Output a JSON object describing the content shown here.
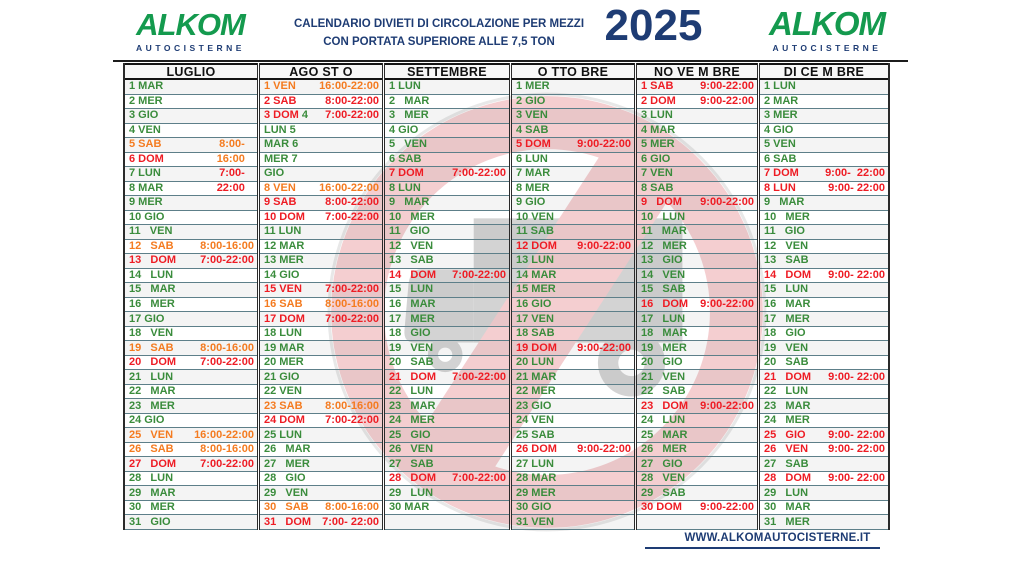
{
  "header": {
    "brand": "ALKOM",
    "brand_sub": "AUTOCISTERNE",
    "title_line1": "CALENDARIO DIVIETI DI CIRCOLAZIONE PER MEZZI",
    "title_line2": "CON PORTATA SUPERIORE ALLE 7,5 TON",
    "year": "2025"
  },
  "footer": {
    "website": "WWW.ALKOMAUTOCISTERNE.IT"
  },
  "colors": {
    "brand_green": "#149a4e",
    "navy": "#1e3c74",
    "day_green": "#3a8c3c",
    "partial_ban_orange": "#f47b20",
    "full_ban_red": "#ee1c24"
  },
  "watermark": {
    "icon": "no-entry-truck-sign"
  },
  "months": [
    {
      "name": "LUGLIO",
      "days": [
        {
          "d": "1 MAR",
          "dc": "g"
        },
        {
          "d": "2 MER",
          "dc": "g"
        },
        {
          "d": "3 GIO",
          "dc": "g"
        },
        {
          "d": "4 VEN",
          "dc": "g"
        },
        {
          "d": "5 SAB",
          "dc": "o",
          "t": "8:00-   ",
          "tc": "o"
        },
        {
          "d": "6 DOM",
          "dc": "r",
          "t": "16:00   ",
          "tc": "o"
        },
        {
          "d": "7 LUN",
          "dc": "g",
          "t": "7:00-   ",
          "tc": "r"
        },
        {
          "d": "8 MAR",
          "dc": "g",
          "t": "22:00   ",
          "tc": "r"
        },
        {
          "d": "9 MER",
          "dc": "g"
        },
        {
          "d": "10 GIO",
          "dc": "g"
        },
        {
          "d": "11   VEN",
          "dc": "g"
        },
        {
          "d": "12   SAB",
          "dc": "o",
          "t": "8:00-16:00",
          "tc": "o"
        },
        {
          "d": "13   DOM",
          "dc": "r",
          "t": "7:00-22:00",
          "tc": "r"
        },
        {
          "d": "14   LUN",
          "dc": "g"
        },
        {
          "d": "15   MAR",
          "dc": "g"
        },
        {
          "d": "16   MER",
          "dc": "g"
        },
        {
          "d": "17 GIO",
          "dc": "g"
        },
        {
          "d": "18   VEN",
          "dc": "g"
        },
        {
          "d": "19   SAB",
          "dc": "o",
          "t": "8:00-16:00",
          "tc": "o"
        },
        {
          "d": "20   DOM",
          "dc": "r",
          "t": "7:00-22:00",
          "tc": "r"
        },
        {
          "d": "21   LUN",
          "dc": "g"
        },
        {
          "d": "22   MAR",
          "dc": "g"
        },
        {
          "d": "23   MER",
          "dc": "g"
        },
        {
          "d": "24 GIO",
          "dc": "g"
        },
        {
          "d": "25   VEN",
          "dc": "o",
          "t": "16:00-22:00",
          "tc": "o"
        },
        {
          "d": "26   SAB",
          "dc": "o",
          "t": "8:00-16:00",
          "tc": "o"
        },
        {
          "d": "27   DOM",
          "dc": "r",
          "t": "7:00-22:00",
          "tc": "r"
        },
        {
          "d": "28   LUN",
          "dc": "g"
        },
        {
          "d": "29   MAR",
          "dc": "g"
        },
        {
          "d": "30   MER",
          "dc": "g"
        },
        {
          "d": "31   GIO",
          "dc": "g"
        }
      ]
    },
    {
      "name": "AGO ST O",
      "days": [
        {
          "d": "1 VEN",
          "dc": "o",
          "t": "16:00-22:00",
          "tc": "o"
        },
        {
          "d": "2 SAB",
          "dc": "r",
          "t": "8:00-22:00",
          "tc": "r"
        },
        {
          "d": "3 DOM",
          "dc": "r",
          "d2": " 4",
          "d2c": "g",
          "t": "7:00-22:00",
          "tc": "r"
        },
        {
          "d": "LUN 5",
          "dc": "g"
        },
        {
          "d": "MAR 6",
          "dc": "g"
        },
        {
          "d": "MER 7",
          "dc": "g"
        },
        {
          "d": "GIO",
          "dc": "g"
        },
        {
          "d": "8 VEN",
          "dc": "o",
          "t": "16:00-22:00",
          "tc": "o"
        },
        {
          "d": "9 SAB",
          "dc": "r",
          "t": "8:00-22:00",
          "tc": "r"
        },
        {
          "d": "10 DOM",
          "dc": "r",
          "t": "7:00-22:00",
          "tc": "r"
        },
        {
          "d": "11 LUN",
          "dc": "g"
        },
        {
          "d": "12 MAR",
          "dc": "g"
        },
        {
          "d": "13 MER",
          "dc": "g"
        },
        {
          "d": "14 GIO",
          "dc": "g"
        },
        {
          "d": "15 VEN",
          "dc": "r",
          "t": "7:00-22:00",
          "tc": "r"
        },
        {
          "d": "16 SAB",
          "dc": "o",
          "t": "8:00-16:00",
          "tc": "o"
        },
        {
          "d": "17 DOM",
          "dc": "r",
          "t": "7:00-22:00",
          "tc": "r"
        },
        {
          "d": "18 LUN",
          "dc": "g"
        },
        {
          "d": "19 MAR",
          "dc": "g"
        },
        {
          "d": "20 MER",
          "dc": "g"
        },
        {
          "d": "21 GIO",
          "dc": "g"
        },
        {
          "d": "22 VEN",
          "dc": "g"
        },
        {
          "d": "23 SAB",
          "dc": "o",
          "t": "8:00-16:00",
          "tc": "o"
        },
        {
          "d": "24 DOM",
          "dc": "r",
          "t": "7:00-22:00",
          "tc": "r"
        },
        {
          "d": "25 LUN",
          "dc": "g"
        },
        {
          "d": "26   MAR",
          "dc": "g"
        },
        {
          "d": "27   MER",
          "dc": "g"
        },
        {
          "d": "28   GIO",
          "dc": "g"
        },
        {
          "d": "29   VEN",
          "dc": "g"
        },
        {
          "d": "30   SAB",
          "dc": "o",
          "t": "8:00-16:00",
          "tc": "o"
        },
        {
          "d": "31   DOM",
          "dc": "r",
          "t": "7:00- 22:00",
          "tc": "r"
        }
      ]
    },
    {
      "name": "SETTEMBRE",
      "days": [
        {
          "d": "1 LUN",
          "dc": "g"
        },
        {
          "d": "2   MAR",
          "dc": "g"
        },
        {
          "d": "3   MER",
          "dc": "g"
        },
        {
          "d": "4 GIO",
          "dc": "g"
        },
        {
          "d": "5   VEN",
          "dc": "g"
        },
        {
          "d": "6 SAB",
          "dc": "g"
        },
        {
          "d": "7 DOM",
          "dc": "r",
          "t": "7:00-22:00",
          "tc": "r"
        },
        {
          "d": "8 LUN",
          "dc": "g"
        },
        {
          "d": "9   MAR",
          "dc": "g"
        },
        {
          "d": "10   MER",
          "dc": "g"
        },
        {
          "d": "11   GIO",
          "dc": "g"
        },
        {
          "d": "12   VEN",
          "dc": "g"
        },
        {
          "d": "13   SAB",
          "dc": "g"
        },
        {
          "d": "14   DOM",
          "dc": "r",
          "t": "7:00-22:00",
          "tc": "r"
        },
        {
          "d": "15   LUN",
          "dc": "g"
        },
        {
          "d": "16   MAR",
          "dc": "g"
        },
        {
          "d": "17   MER",
          "dc": "g"
        },
        {
          "d": "18   GIO",
          "dc": "g"
        },
        {
          "d": "19   VEN",
          "dc": "g"
        },
        {
          "d": "20   SAB",
          "dc": "g"
        },
        {
          "d": "21   DOM",
          "dc": "r",
          "t": "7:00-22:00",
          "tc": "r"
        },
        {
          "d": "22   LUN",
          "dc": "g"
        },
        {
          "d": "23   MAR",
          "dc": "g"
        },
        {
          "d": "24   MER",
          "dc": "g"
        },
        {
          "d": "25   GIO",
          "dc": "g"
        },
        {
          "d": "26   VEN",
          "dc": "g"
        },
        {
          "d": "27   SAB",
          "dc": "g"
        },
        {
          "d": "28   DOM",
          "dc": "r",
          "t": "7:00-22:00",
          "tc": "r"
        },
        {
          "d": "29   LUN",
          "dc": "g"
        },
        {
          "d": "30 MAR",
          "dc": "g"
        },
        {
          "d": "",
          "dc": "g"
        }
      ]
    },
    {
      "name": "O TTO BRE",
      "days": [
        {
          "d": "1 MER",
          "dc": "g"
        },
        {
          "d": "2 GIO",
          "dc": "g"
        },
        {
          "d": "3 VEN",
          "dc": "g"
        },
        {
          "d": "4 SAB",
          "dc": "g"
        },
        {
          "d": "5 DOM",
          "dc": "r",
          "t": "9:00-22:00",
          "tc": "r"
        },
        {
          "d": "6 LUN",
          "dc": "g"
        },
        {
          "d": "7 MAR",
          "dc": "g"
        },
        {
          "d": "8 MER",
          "dc": "g"
        },
        {
          "d": "9 GIO",
          "dc": "g"
        },
        {
          "d": "10 VEN",
          "dc": "g"
        },
        {
          "d": "11 SAB",
          "dc": "g"
        },
        {
          "d": "12 DOM",
          "dc": "r",
          "t": "9:00-22:00",
          "tc": "r"
        },
        {
          "d": "13 LUN",
          "dc": "g"
        },
        {
          "d": "14 MAR",
          "dc": "g"
        },
        {
          "d": "15 MER",
          "dc": "g"
        },
        {
          "d": "16 GIO",
          "dc": "g"
        },
        {
          "d": "17 VEN",
          "dc": "g"
        },
        {
          "d": "18 SAB",
          "dc": "g"
        },
        {
          "d": "19 DOM",
          "dc": "r",
          "t": "9:00-22:00",
          "tc": "r"
        },
        {
          "d": "20 LUN",
          "dc": "g"
        },
        {
          "d": "21 MAR",
          "dc": "g"
        },
        {
          "d": "22 MER",
          "dc": "g"
        },
        {
          "d": "23 GIO",
          "dc": "g"
        },
        {
          "d": "24 VEN",
          "dc": "g"
        },
        {
          "d": "25 SAB",
          "dc": "g"
        },
        {
          "d": "26 DOM",
          "dc": "r",
          "t": "9:00-22:00",
          "tc": "r"
        },
        {
          "d": "27 LUN",
          "dc": "g"
        },
        {
          "d": "28 MAR",
          "dc": "g"
        },
        {
          "d": "29 MER",
          "dc": "g"
        },
        {
          "d": "30 GIO",
          "dc": "g"
        },
        {
          "d": "31 VEN",
          "dc": "g"
        }
      ]
    },
    {
      "name": "NO VE M BRE",
      "days": [
        {
          "d": "1 SAB",
          "dc": "r",
          "t": "9:00-22:00",
          "tc": "r"
        },
        {
          "d": "2 DOM",
          "dc": "r",
          "t": "9:00-22:00",
          "tc": "r"
        },
        {
          "d": "3 LUN",
          "dc": "g"
        },
        {
          "d": "4 MAR",
          "dc": "g"
        },
        {
          "d": "5 MER",
          "dc": "g"
        },
        {
          "d": "6 GIO",
          "dc": "g"
        },
        {
          "d": "7 VEN",
          "dc": "g"
        },
        {
          "d": "8 SAB",
          "dc": "g"
        },
        {
          "d": "9   DOM",
          "dc": "r",
          "t": "9:00-22:00",
          "tc": "r"
        },
        {
          "d": "10   LUN",
          "dc": "g"
        },
        {
          "d": "11   MAR",
          "dc": "g"
        },
        {
          "d": "12   MER",
          "dc": "g"
        },
        {
          "d": "13   GIO",
          "dc": "g"
        },
        {
          "d": "14   VEN",
          "dc": "g"
        },
        {
          "d": "15   SAB",
          "dc": "g"
        },
        {
          "d": "16   DOM",
          "dc": "r",
          "t": "9:00-22:00",
          "tc": "r"
        },
        {
          "d": "17   LUN",
          "dc": "g"
        },
        {
          "d": "18   MAR",
          "dc": "g"
        },
        {
          "d": "19   MER",
          "dc": "g"
        },
        {
          "d": "20   GIO",
          "dc": "g"
        },
        {
          "d": "21   VEN",
          "dc": "g"
        },
        {
          "d": "22   SAB",
          "dc": "g"
        },
        {
          "d": "23   DOM",
          "dc": "r",
          "t": "9:00-22:00",
          "tc": "r"
        },
        {
          "d": "24   LUN",
          "dc": "g"
        },
        {
          "d": "25   MAR",
          "dc": "g"
        },
        {
          "d": "26   MER",
          "dc": "g"
        },
        {
          "d": "27   GIO",
          "dc": "g"
        },
        {
          "d": "28   VEN",
          "dc": "g"
        },
        {
          "d": "29   SAB",
          "dc": "g"
        },
        {
          "d": "30 DOM",
          "dc": "r",
          "t": "9:00-22:00",
          "tc": "r"
        },
        {
          "d": "",
          "dc": "g"
        }
      ]
    },
    {
      "name": "DI CE M BRE",
      "days": [
        {
          "d": "1 LUN",
          "dc": "g"
        },
        {
          "d": "2 MAR",
          "dc": "g"
        },
        {
          "d": "3 MER",
          "dc": "g"
        },
        {
          "d": "4 GIO",
          "dc": "g"
        },
        {
          "d": "5 VEN",
          "dc": "g"
        },
        {
          "d": "6 SAB",
          "dc": "g"
        },
        {
          "d": "7 DOM",
          "dc": "r",
          "t": "9:00-  22:00",
          "tc": "r"
        },
        {
          "d": "8 LUN",
          "dc": "r",
          "t": "9:00- 22:00",
          "tc": "r"
        },
        {
          "d": "9   MAR",
          "dc": "g"
        },
        {
          "d": "10   MER",
          "dc": "g"
        },
        {
          "d": "11   GIO",
          "dc": "g"
        },
        {
          "d": "12   VEN",
          "dc": "g"
        },
        {
          "d": "13   SAB",
          "dc": "g"
        },
        {
          "d": "14   DOM",
          "dc": "r",
          "t": "9:00- 22:00",
          "tc": "r"
        },
        {
          "d": "15   LUN",
          "dc": "g"
        },
        {
          "d": "16   MAR",
          "dc": "g"
        },
        {
          "d": "17   MER",
          "dc": "g"
        },
        {
          "d": "18   GIO",
          "dc": "g"
        },
        {
          "d": "19   VEN",
          "dc": "g"
        },
        {
          "d": "20   SAB",
          "dc": "g"
        },
        {
          "d": "21   DOM",
          "dc": "r",
          "t": "9:00- 22:00",
          "tc": "r"
        },
        {
          "d": "22   LUN",
          "dc": "g"
        },
        {
          "d": "23   MAR",
          "dc": "g"
        },
        {
          "d": "24   MER",
          "dc": "g"
        },
        {
          "d": "25   GIO",
          "dc": "r",
          "t": "9:00- 22:00",
          "tc": "r"
        },
        {
          "d": "26   VEN",
          "dc": "r",
          "t": "9:00- 22:00",
          "tc": "r"
        },
        {
          "d": "27   SAB",
          "dc": "g"
        },
        {
          "d": "28   DOM",
          "dc": "r",
          "t": "9:00- 22:00",
          "tc": "r"
        },
        {
          "d": "29   LUN",
          "dc": "g"
        },
        {
          "d": "30   MAR",
          "dc": "g"
        },
        {
          "d": "31   MER",
          "dc": "g"
        }
      ]
    }
  ]
}
